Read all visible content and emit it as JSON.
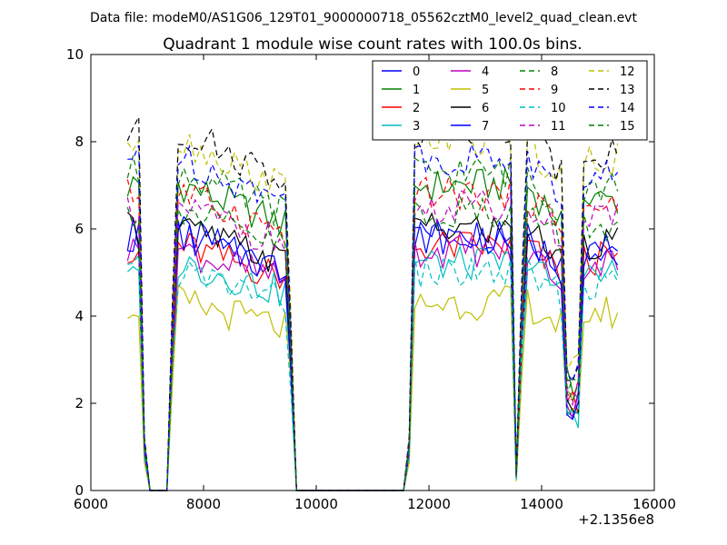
{
  "figure": {
    "suptitle": "Data file: modeM0/AS1G06_129T01_9000000718_05562cztM0_level2_quad_clean.evt",
    "title": "Quadrant 1 module wise count rates with 100.0s bins.",
    "x_offset_label": "+2.1356e8"
  },
  "chart_data": {
    "type": "line",
    "title": "Quadrant 1 module wise count rates with 100.0s bins.",
    "xlabel": "",
    "ylabel": "",
    "xlim": [
      6000,
      16000
    ],
    "ylim": [
      0,
      10
    ],
    "x_ticks": [
      6000,
      8000,
      10000,
      12000,
      14000,
      16000
    ],
    "y_ticks": [
      0,
      2,
      4,
      6,
      8,
      10
    ],
    "x_offset": 213560000,
    "grid": false,
    "legend_position": "top-right",
    "legend_columns": 4,
    "x": [
      6650,
      6750,
      6850,
      6950,
      7050,
      7150,
      7250,
      7350,
      7450,
      7550,
      7650,
      7750,
      7850,
      7950,
      8050,
      8150,
      8250,
      8350,
      8450,
      8550,
      8650,
      8750,
      8850,
      8950,
      9050,
      9150,
      9250,
      9350,
      9450,
      9550,
      9650,
      9750,
      9850,
      9950,
      10050,
      10150,
      10250,
      10350,
      10450,
      10550,
      10650,
      10750,
      10850,
      10950,
      11050,
      11150,
      11250,
      11350,
      11450,
      11550,
      11650,
      11750,
      11850,
      11950,
      12050,
      12150,
      12250,
      12350,
      12450,
      12550,
      12650,
      12750,
      12850,
      12950,
      13050,
      13150,
      13250,
      13350,
      13450,
      13550,
      13650,
      13750,
      13850,
      13950,
      14050,
      14150,
      14250,
      14350,
      14450,
      14550,
      14650,
      14750,
      14850,
      14950,
      15050,
      15150,
      15250,
      15350
    ],
    "series": [
      {
        "name": "0",
        "color": "#0000ff",
        "dash": "solid",
        "base": 5.9
      },
      {
        "name": "1",
        "color": "#008000",
        "dash": "solid",
        "base": 7.0
      },
      {
        "name": "2",
        "color": "#ff0000",
        "dash": "solid",
        "base": 5.6
      },
      {
        "name": "3",
        "color": "#00bfbf",
        "dash": "solid",
        "base": 5.2
      },
      {
        "name": "4",
        "color": "#bf00bf",
        "dash": "solid",
        "base": 5.5
      },
      {
        "name": "5",
        "color": "#bfbf00",
        "dash": "solid",
        "base": 4.3
      },
      {
        "name": "6",
        "color": "#000000",
        "dash": "solid",
        "base": 6.0
      },
      {
        "name": "7",
        "color": "#0000ff",
        "dash": "solid",
        "base": 5.8
      },
      {
        "name": "8",
        "color": "#008000",
        "dash": "dashed",
        "base": 7.3
      },
      {
        "name": "9",
        "color": "#ff0000",
        "dash": "dashed",
        "base": 6.8
      },
      {
        "name": "10",
        "color": "#00bfbf",
        "dash": "dashed",
        "base": 5.0
      },
      {
        "name": "11",
        "color": "#bf00bf",
        "dash": "dashed",
        "base": 6.5
      },
      {
        "name": "12",
        "color": "#bfbf00",
        "dash": "dashed",
        "base": 8.0
      },
      {
        "name": "13",
        "color": "#000000",
        "dash": "dashed",
        "base": 8.2
      },
      {
        "name": "14",
        "color": "#0000ff",
        "dash": "dashed",
        "base": 7.6
      },
      {
        "name": "15",
        "color": "#008000",
        "dash": "dashed",
        "base": 6.4
      }
    ]
  }
}
